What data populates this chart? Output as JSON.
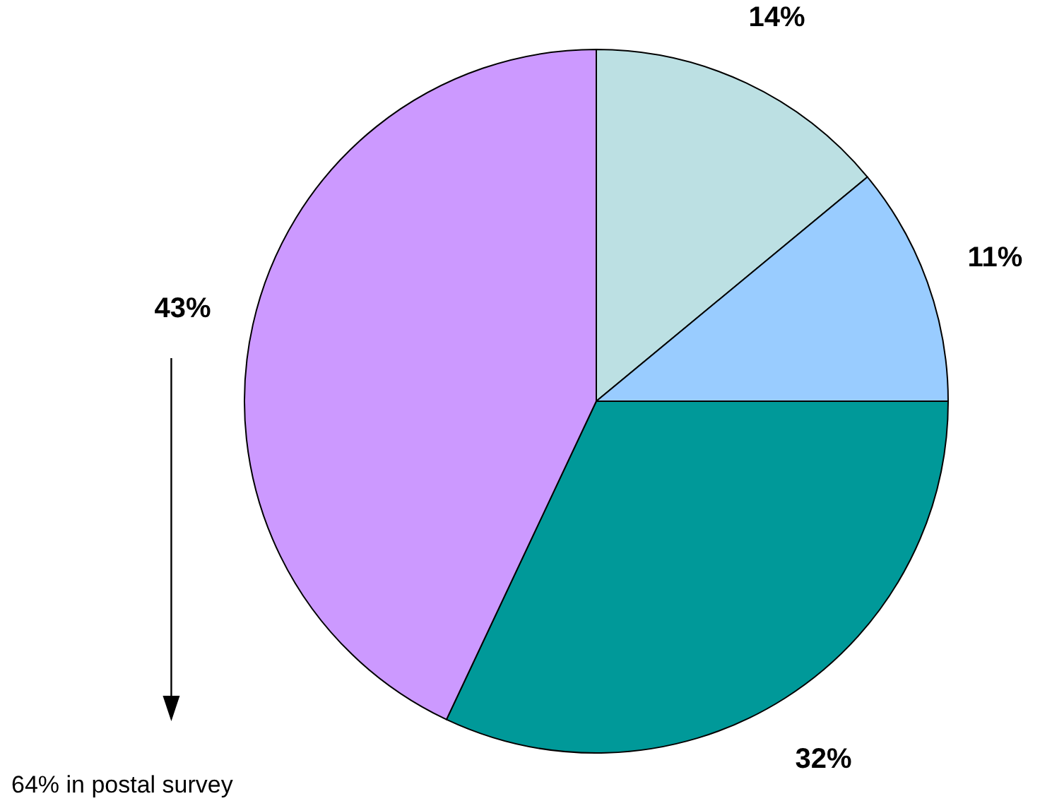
{
  "chart_data": {
    "type": "pie",
    "categories": [
      null,
      null,
      null,
      null
    ],
    "values": [
      14,
      11,
      32,
      43
    ],
    "colors": [
      "#bce0e3",
      "#99ccff",
      "#009999",
      "#cc99ff"
    ],
    "value_labels": [
      "14%",
      "11%",
      "32%",
      "43%"
    ],
    "annotations": [
      "64% in postal survey"
    ]
  }
}
